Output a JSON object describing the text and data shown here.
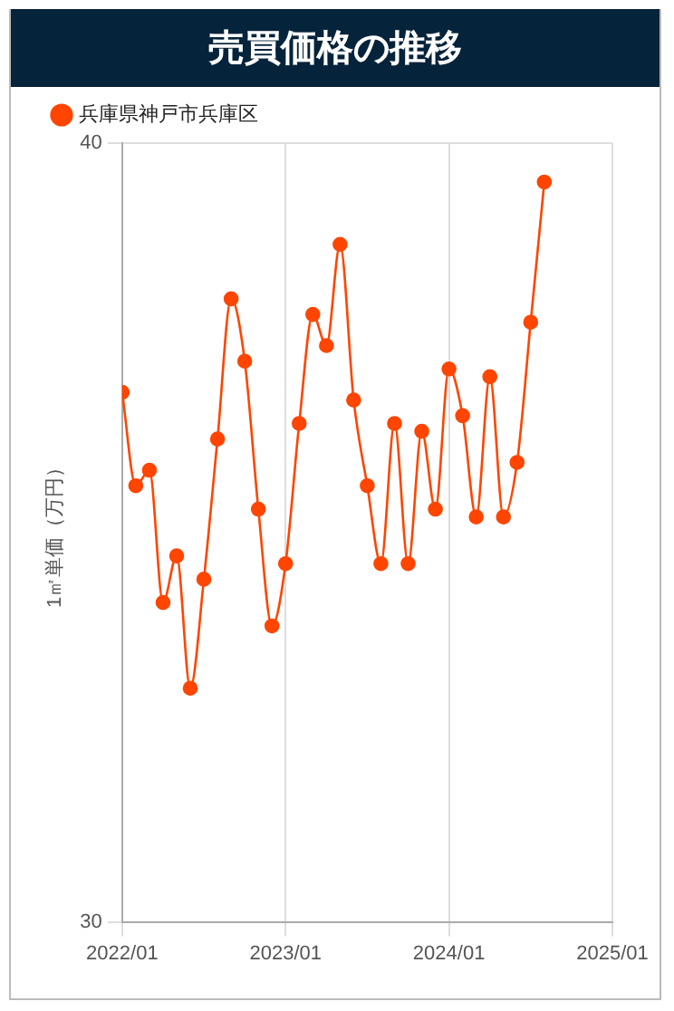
{
  "chart_data": {
    "type": "line",
    "title": "売買価格の推移",
    "ylabel": "1㎡単価（万円）",
    "x": [
      "2022-01",
      "2022-02",
      "2022-03",
      "2022-04",
      "2022-05",
      "2022-06",
      "2022-07",
      "2022-08",
      "2022-09",
      "2022-10",
      "2022-11",
      "2022-12",
      "2023-01",
      "2023-02",
      "2023-03",
      "2023-04",
      "2023-05",
      "2023-06",
      "2023-07",
      "2023-08",
      "2023-09",
      "2023-10",
      "2023-11",
      "2023-12",
      "2024-01",
      "2024-02",
      "2024-03",
      "2024-04",
      "2024-05",
      "2024-06",
      "2024-07",
      "2024-08"
    ],
    "series": [
      {
        "name": "兵庫県神戸市兵庫区",
        "color": "#ff4500",
        "values": [
          36.8,
          35.6,
          35.8,
          34.1,
          34.7,
          33.0,
          34.4,
          36.2,
          38.0,
          37.2,
          35.3,
          33.8,
          34.6,
          36.4,
          37.8,
          37.4,
          38.7,
          36.7,
          35.6,
          34.6,
          36.4,
          34.6,
          36.3,
          35.3,
          37.1,
          36.5,
          35.2,
          37.0,
          35.2,
          35.9,
          37.7,
          39.5
        ]
      }
    ],
    "xlim": [
      "2022-01",
      "2025-01"
    ],
    "xticks": [
      {
        "value": "2022-01",
        "label": "2022/01"
      },
      {
        "value": "2023-01",
        "label": "2023/01"
      },
      {
        "value": "2024-01",
        "label": "2024/01"
      },
      {
        "value": "2025-01",
        "label": "2025/01"
      }
    ],
    "ylim": [
      30,
      40
    ],
    "yticks": [
      30,
      40
    ],
    "grid": true,
    "legend": "top left",
    "marker": "circle",
    "line_style": "solid"
  }
}
